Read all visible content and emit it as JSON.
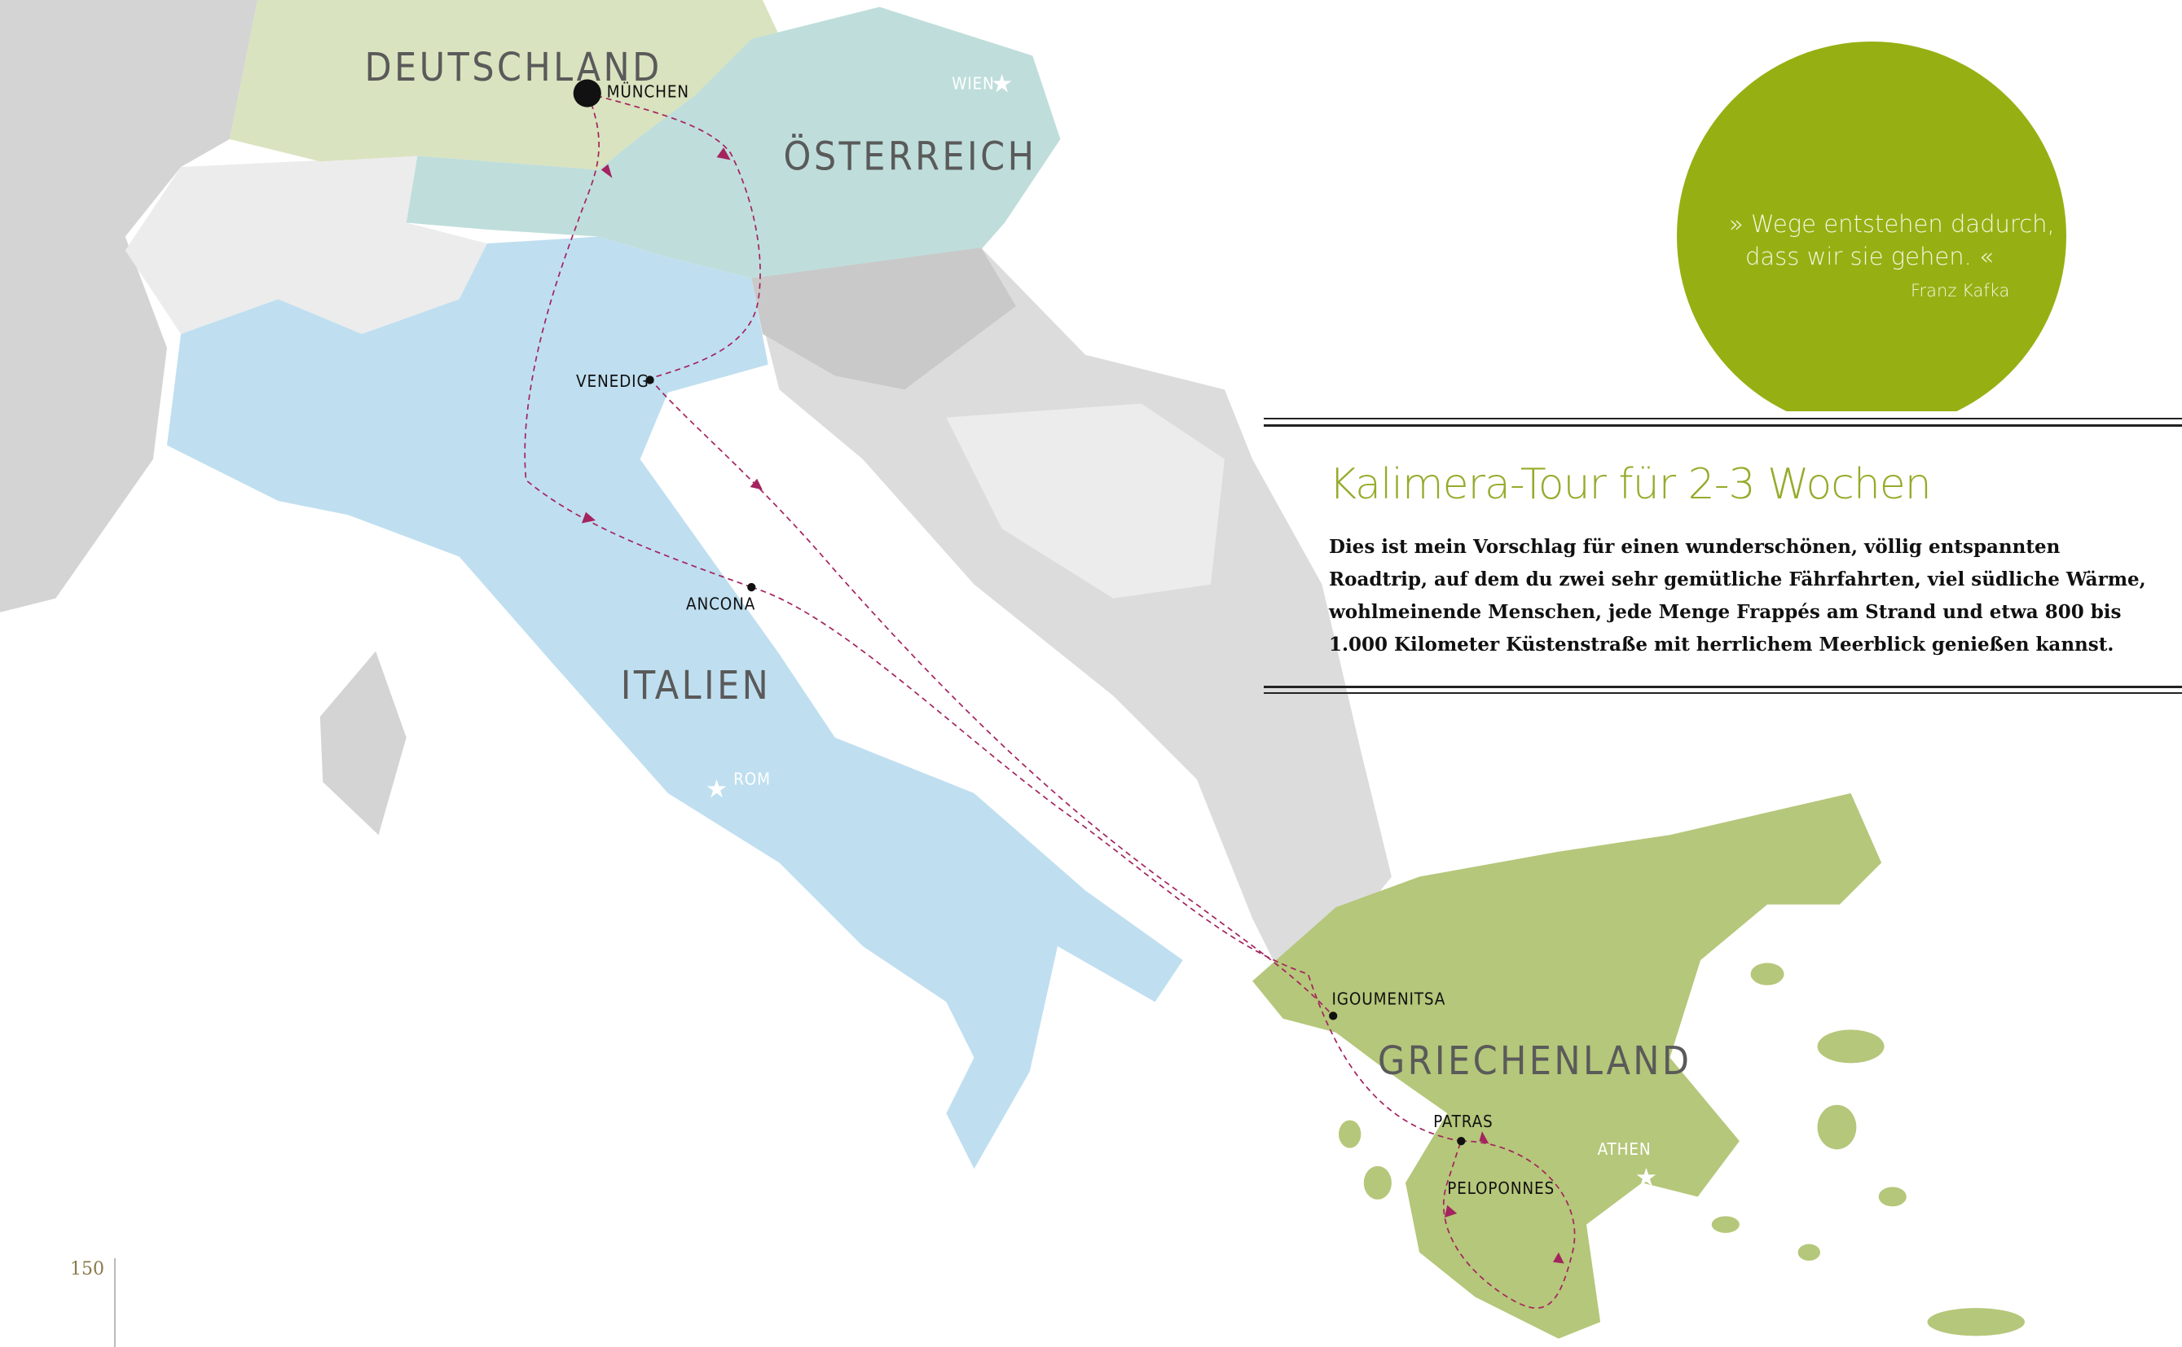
{
  "map": {
    "countries": {
      "deutschland": "DEUTSCHLAND",
      "oesterreich": "ÖSTERREICH",
      "italien": "ITALIEN",
      "griechenland": "GRIECHENLAND"
    },
    "cities": {
      "muenchen": "MÜNCHEN",
      "venedig": "VENEDIG",
      "ancona": "ANCONA",
      "igoumenitsa": "IGOUMENITSA",
      "patras": "PATRAS",
      "peloponnes": "PELOPONNES"
    },
    "capitals": {
      "wien": "WIEN",
      "rom": "ROM",
      "athen": "ATHEN"
    },
    "colors": {
      "germany": "#d9e3bf",
      "austria": "#bfdedb",
      "italy": "#bfdff0",
      "greece": "#b5c77a",
      "neutral": "#d9d9d9",
      "route": "#a3245f"
    }
  },
  "quote": {
    "line1": "» Wege entstehen dadurch,",
    "line2": "dass wir sie gehen. «",
    "author": "Franz Kafka",
    "color": "#96b013"
  },
  "section": {
    "title": "Kalimera-Tour für 2-3 Wochen",
    "body_lines": [
      "Dies ist mein Vorschlag für einen wunderschönen, völlig entspannten",
      "Roadtrip, auf dem du zwei sehr gemütliche Fährfahrten, viel südliche Wärme,",
      "wohlmeinende Menschen, jede Menge Frappés am Strand und etwa 800 bis",
      "1.000 Kilometer Küstenstraße mit herrlichem Meerblick genießen kannst."
    ]
  },
  "page_number": "150"
}
